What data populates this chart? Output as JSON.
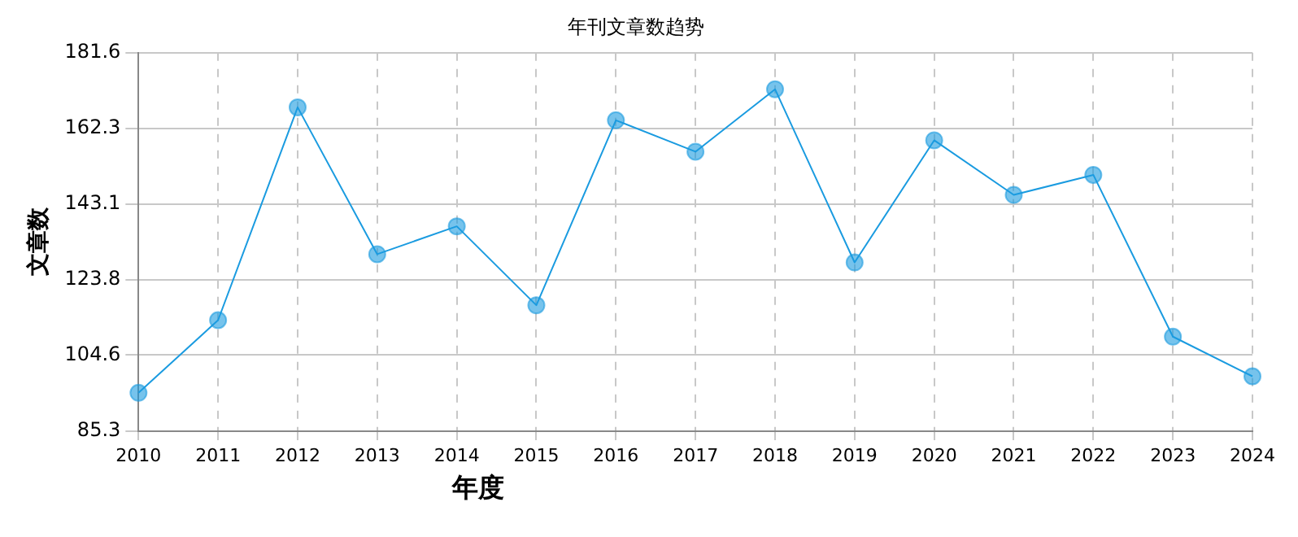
{
  "chart_data": {
    "type": "line",
    "title": "年刊文章数趋势",
    "xlabel": "年度",
    "ylabel": "文章数",
    "categories": [
      "2010",
      "2011",
      "2012",
      "2013",
      "2014",
      "2015",
      "2016",
      "2017",
      "2018",
      "2019",
      "2020",
      "2021",
      "2022",
      "2023",
      "2024"
    ],
    "series": [
      {
        "color": "#1a9be0",
        "values": [
          95.0,
          113.5,
          167.7,
          130.3,
          137.4,
          117.3,
          164.4,
          156.4,
          172.3,
          128.2,
          159.3,
          145.4,
          150.5,
          109.3,
          99.2
        ]
      }
    ],
    "ylim": [
      85.3,
      181.6
    ],
    "yticks": [
      85.3,
      104.6,
      123.8,
      143.1,
      162.3,
      181.6
    ],
    "grid": true,
    "marker": "circle",
    "line_style": "solid",
    "legend": false
  }
}
